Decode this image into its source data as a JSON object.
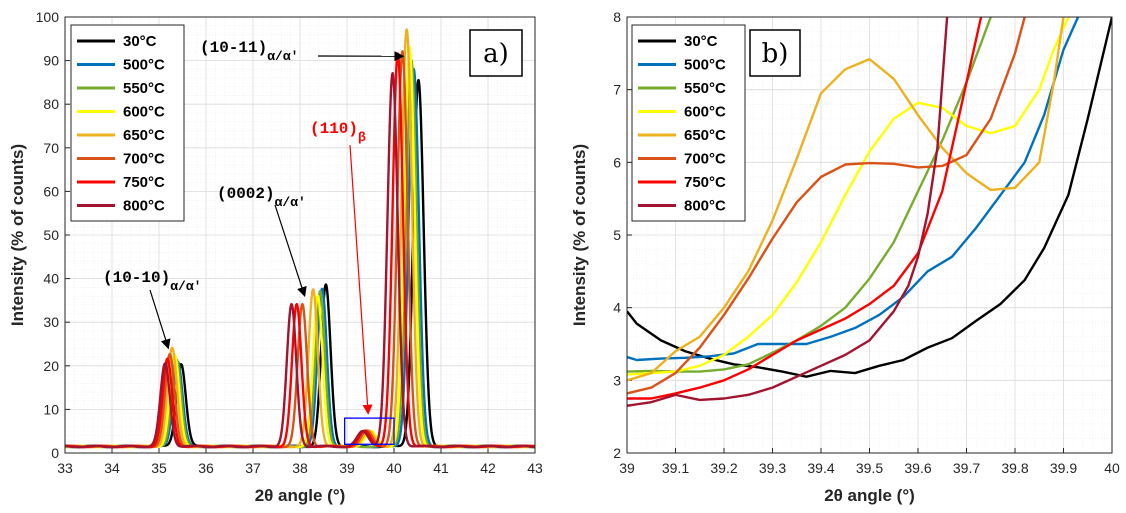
{
  "chart_data": [
    {
      "type": "line",
      "panel_label": "a)",
      "xlabel": "2θ angle (°)",
      "ylabel": "Intensity (% of counts)",
      "xlim": [
        33,
        43
      ],
      "ylim": [
        0,
        100
      ],
      "xticks": [
        "33",
        "34",
        "35",
        "36",
        "37",
        "38",
        "39",
        "40",
        "41",
        "42",
        "43"
      ],
      "yticks": [
        "0",
        "10",
        "20",
        "30",
        "40",
        "50",
        "60",
        "70",
        "80",
        "90",
        "100"
      ],
      "grid": true,
      "legend_position": "top-left",
      "series": [
        {
          "name": "30°C",
          "color": "#000000",
          "peaks": [
            [
              35.47,
              20.5
            ],
            [
              38.55,
              38.5
            ],
            [
              40.52,
              85.5
            ]
          ]
        },
        {
          "name": "500°C",
          "color": "#0072BD",
          "peaks": [
            [
              35.4,
              21.0
            ],
            [
              38.47,
              37.5
            ],
            [
              40.42,
              88.0
            ]
          ]
        },
        {
          "name": "550°C",
          "color": "#77AC30",
          "peaks": [
            [
              35.37,
              21.5
            ],
            [
              38.43,
              37.0
            ],
            [
              40.37,
              90.0
            ]
          ]
        },
        {
          "name": "600°C",
          "color": "#FFFF00",
          "peaks": [
            [
              35.33,
              22.5
            ],
            [
              38.38,
              36.0
            ],
            [
              40.33,
              93.0
            ]
          ]
        },
        {
          "name": "650°C",
          "color": "#EDB120",
          "peaks": [
            [
              35.28,
              24.0
            ],
            [
              38.28,
              37.5
            ],
            [
              40.27,
              97.0
            ]
          ]
        },
        {
          "name": "700°C",
          "color": "#D95319",
          "peaks": [
            [
              35.23,
              22.5
            ],
            [
              38.05,
              34.0
            ],
            [
              40.18,
              92.0
            ]
          ]
        },
        {
          "name": "750°C",
          "color": "#FF0000",
          "peaks": [
            [
              35.18,
              21.5
            ],
            [
              37.93,
              34.0
            ],
            [
              40.08,
              91.5
            ]
          ]
        },
        {
          "name": "800°C",
          "color": "#A2142F",
          "peaks": [
            [
              35.13,
              20.5
            ],
            [
              37.82,
              34.0
            ],
            [
              39.97,
              87.0
            ]
          ]
        }
      ],
      "baseline": 1.5,
      "small_peak": [
        39.5,
        6.0
      ],
      "annotations": [
        {
          "text": "(10-10)",
          "subscript": "α/α'",
          "arrow_to": [
            35.2,
            24.0
          ]
        },
        {
          "text": "(0002)",
          "subscript": "α/α'",
          "arrow_to": [
            38.1,
            36.0
          ]
        },
        {
          "text": "(10-11)",
          "subscript": "α/α'",
          "arrow_to": [
            40.2,
            91.0
          ]
        },
        {
          "text": "(110)",
          "subscript": "β",
          "color": "#FF0000",
          "arrow_to": [
            39.45,
            9.0
          ]
        }
      ],
      "highlight_box": {
        "x": [
          38.95,
          40.0
        ],
        "y": [
          2.0,
          8.0
        ],
        "color": "#0000FF"
      }
    },
    {
      "type": "line",
      "panel_label": "b)",
      "xlabel": "2θ angle (°)",
      "ylabel": "Intensity (% of counts)",
      "xlim": [
        39,
        40
      ],
      "ylim": [
        2,
        8
      ],
      "xticks": [
        "39",
        "39.1",
        "39.2",
        "39.3",
        "39.4",
        "39.5",
        "39.6",
        "39.7",
        "39.8",
        "39.9",
        "40"
      ],
      "yticks": [
        "2",
        "3",
        "4",
        "5",
        "6",
        "7",
        "8"
      ],
      "grid": true,
      "legend_position": "top-left",
      "series": [
        {
          "name": "30°C",
          "color": "#000000",
          "x": [
            39.0,
            39.02,
            39.07,
            39.12,
            39.17,
            39.22,
            39.27,
            39.32,
            39.37,
            39.42,
            39.47,
            39.52,
            39.57,
            39.62,
            39.67,
            39.72,
            39.77,
            39.82,
            39.86,
            39.91,
            39.95,
            40.0
          ],
          "y": [
            3.95,
            3.78,
            3.55,
            3.4,
            3.3,
            3.22,
            3.18,
            3.12,
            3.05,
            3.13,
            3.1,
            3.2,
            3.28,
            3.45,
            3.58,
            3.82,
            4.05,
            4.38,
            4.82,
            5.55,
            6.6,
            8.0
          ]
        },
        {
          "name": "500°C",
          "color": "#0072BD",
          "x": [
            39.0,
            39.02,
            39.07,
            39.12,
            39.17,
            39.22,
            39.27,
            39.32,
            39.37,
            39.42,
            39.47,
            39.52,
            39.57,
            39.62,
            39.67,
            39.72,
            39.77,
            39.82,
            39.86,
            39.9,
            39.93
          ],
          "y": [
            3.32,
            3.28,
            3.3,
            3.31,
            3.33,
            3.37,
            3.5,
            3.5,
            3.5,
            3.6,
            3.72,
            3.9,
            4.15,
            4.5,
            4.7,
            5.1,
            5.55,
            6.0,
            6.65,
            7.55,
            8.0
          ]
        },
        {
          "name": "550°C",
          "color": "#77AC30",
          "x": [
            39.0,
            39.05,
            39.1,
            39.15,
            39.2,
            39.25,
            39.3,
            39.35,
            39.4,
            39.45,
            39.5,
            39.55,
            39.6,
            39.65,
            39.7,
            39.75
          ],
          "y": [
            3.12,
            3.13,
            3.12,
            3.12,
            3.15,
            3.22,
            3.38,
            3.55,
            3.75,
            4.0,
            4.4,
            4.9,
            5.6,
            6.3,
            7.1,
            8.0
          ]
        },
        {
          "name": "600°C",
          "color": "#FFFF00",
          "x": [
            39.0,
            39.05,
            39.1,
            39.15,
            39.2,
            39.25,
            39.3,
            39.35,
            39.4,
            39.45,
            39.5,
            39.55,
            39.6,
            39.65,
            39.7,
            39.75,
            39.8,
            39.85,
            39.88,
            39.91
          ],
          "y": [
            3.08,
            3.1,
            3.12,
            3.2,
            3.35,
            3.6,
            3.9,
            4.35,
            4.9,
            5.55,
            6.15,
            6.6,
            6.82,
            6.75,
            6.5,
            6.4,
            6.5,
            7.0,
            7.55,
            8.0
          ]
        },
        {
          "name": "650°C",
          "color": "#EDB120",
          "x": [
            39.0,
            39.05,
            39.1,
            39.15,
            39.2,
            39.25,
            39.3,
            39.35,
            39.4,
            39.45,
            39.5,
            39.55,
            39.6,
            39.65,
            39.7,
            39.75,
            39.8,
            39.85,
            39.88,
            39.9
          ],
          "y": [
            3.0,
            3.1,
            3.4,
            3.6,
            4.0,
            4.5,
            5.2,
            6.05,
            6.95,
            7.28,
            7.42,
            7.15,
            6.65,
            6.2,
            5.85,
            5.62,
            5.65,
            6.0,
            7.1,
            8.0
          ]
        },
        {
          "name": "700°C",
          "color": "#D95319",
          "x": [
            39.0,
            39.05,
            39.1,
            39.15,
            39.2,
            39.25,
            39.3,
            39.35,
            39.4,
            39.45,
            39.5,
            39.55,
            39.6,
            39.65,
            39.7,
            39.75,
            39.8,
            39.82
          ],
          "y": [
            2.82,
            2.9,
            3.1,
            3.45,
            3.9,
            4.4,
            4.95,
            5.45,
            5.8,
            5.97,
            5.99,
            5.98,
            5.93,
            5.95,
            6.1,
            6.6,
            7.5,
            8.0
          ]
        },
        {
          "name": "750°C",
          "color": "#FF0000",
          "x": [
            39.0,
            39.05,
            39.1,
            39.15,
            39.2,
            39.25,
            39.3,
            39.35,
            39.4,
            39.45,
            39.5,
            39.55,
            39.6,
            39.65,
            39.7,
            39.73
          ],
          "y": [
            2.75,
            2.75,
            2.82,
            2.9,
            3.0,
            3.15,
            3.35,
            3.55,
            3.7,
            3.85,
            4.05,
            4.3,
            4.75,
            5.6,
            7.1,
            8.0
          ]
        },
        {
          "name": "800°C",
          "color": "#A2142F",
          "x": [
            39.0,
            39.05,
            39.1,
            39.15,
            39.2,
            39.25,
            39.3,
            39.35,
            39.4,
            39.45,
            39.5,
            39.55,
            39.58,
            39.6,
            39.62,
            39.64,
            39.66
          ],
          "y": [
            2.65,
            2.7,
            2.8,
            2.73,
            2.75,
            2.8,
            2.9,
            3.05,
            3.2,
            3.35,
            3.55,
            3.95,
            4.3,
            4.7,
            5.3,
            6.2,
            8.0
          ]
        }
      ]
    }
  ]
}
